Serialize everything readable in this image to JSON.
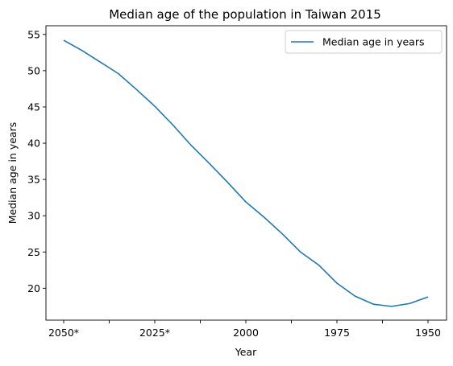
{
  "chart_data": {
    "type": "line",
    "title": "Median age of the population in Taiwan 2015",
    "xlabel": "Year",
    "ylabel": "Median age in years",
    "x_tick_labels": [
      "2050*",
      "2025*",
      "2000",
      "1975",
      "1950"
    ],
    "y_ticks": [
      "20",
      "25",
      "30",
      "35",
      "40",
      "45",
      "50",
      "55"
    ],
    "ylim": [
      15.6,
      56.2
    ],
    "legend": {
      "position": "top-right",
      "label": "Median age in years"
    },
    "grid": false,
    "line_color": "#1f77b4",
    "series": [
      {
        "name": "Median age in years",
        "x": [
          "2050*",
          "2045*",
          "2040*",
          "2035*",
          "2030*",
          "2025*",
          "2020*",
          "2015",
          "2010",
          "2005",
          "2000",
          "1995",
          "1990",
          "1985",
          "1980",
          "1975",
          "1970",
          "1965",
          "1960",
          "1955",
          "1950"
        ],
        "values": [
          54.2,
          52.8,
          51.2,
          49.6,
          47.4,
          45.1,
          42.5,
          39.7,
          37.2,
          34.6,
          31.9,
          29.8,
          27.5,
          25.0,
          23.2,
          20.7,
          18.9,
          17.8,
          17.5,
          17.9,
          18.8
        ]
      }
    ]
  }
}
